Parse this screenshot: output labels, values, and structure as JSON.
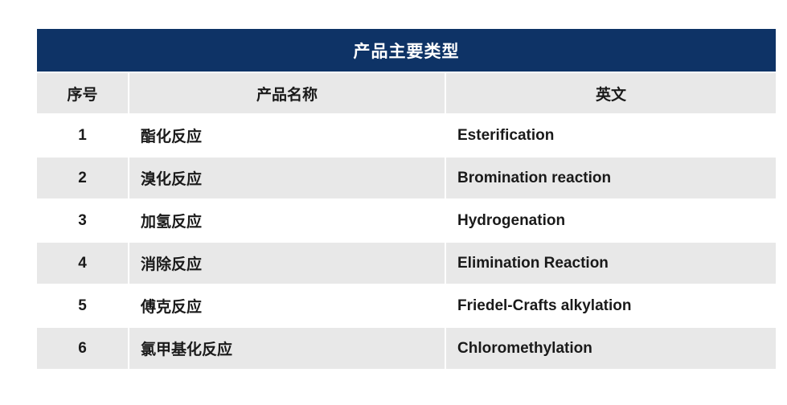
{
  "table": {
    "title": "产品主要类型",
    "columns": {
      "no": "序号",
      "name": "产品名称",
      "english": "英文"
    },
    "rows": [
      {
        "no": "1",
        "name": "酯化反应",
        "english": "Esterification"
      },
      {
        "no": "2",
        "name": "溴化反应",
        "english": "Bromination reaction"
      },
      {
        "no": "3",
        "name": "加氢反应",
        "english": "Hydrogenation"
      },
      {
        "no": "4",
        "name": "消除反应",
        "english": "Elimination Reaction"
      },
      {
        "no": "5",
        "name": "傅克反应",
        "english": "Friedel-Crafts alkylation"
      },
      {
        "no": "6",
        "name": "氯甲基化反应",
        "english": "Chloromethylation"
      }
    ],
    "colors": {
      "title_bg": "#0e3366",
      "title_text": "#ffffff",
      "stripe_bg": "#e8e8e8",
      "row_bg": "#ffffff",
      "body_text": "#1a1a1a"
    }
  }
}
